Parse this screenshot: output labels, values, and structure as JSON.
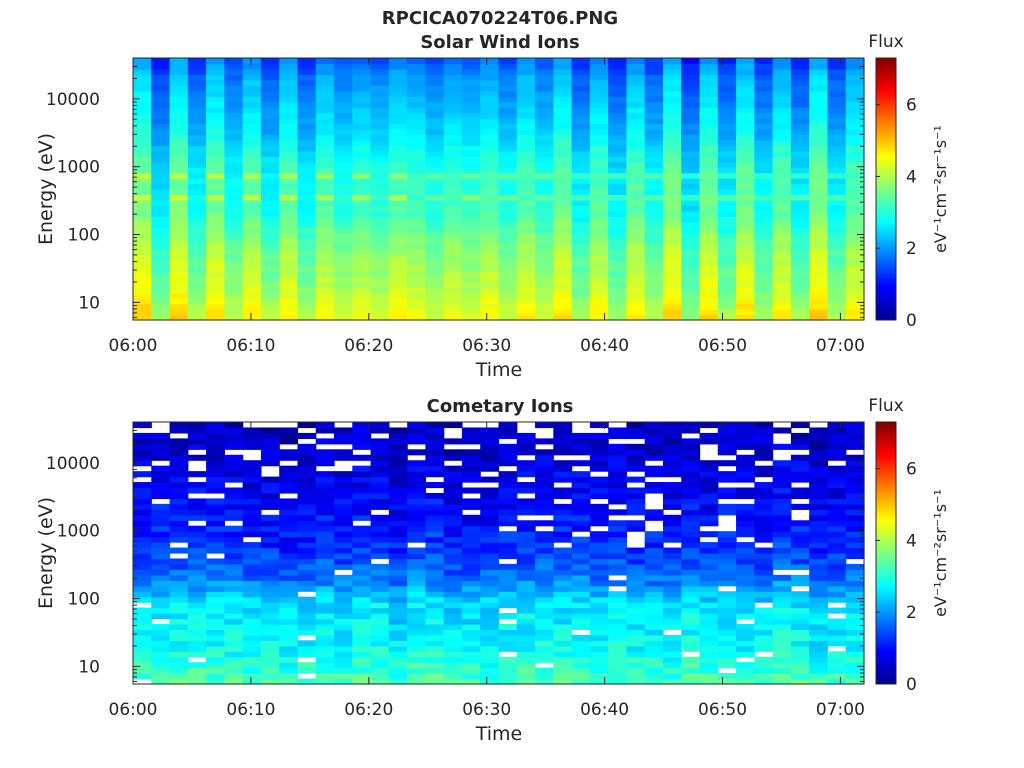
{
  "figure_title": "RPCICA070224T06.PNG",
  "colorbar": {
    "title": "Flux",
    "label": "eV⁻¹cm⁻²sr⁻¹s⁻¹",
    "ticks": [
      "0",
      "2",
      "4",
      "6"
    ],
    "range": [
      0,
      7.3
    ],
    "colormap": "jet"
  },
  "chart_data": [
    {
      "type": "heatmap",
      "title": "Solar Wind Ions",
      "xlabel": "Time",
      "ylabel": "Energy (eV)",
      "x_tick_labels": [
        "06:00",
        "06:10",
        "06:20",
        "06:30",
        "06:40",
        "06:50",
        "07:00"
      ],
      "y_tick_labels": [
        "10",
        "100",
        "1000",
        "10000"
      ],
      "x_range_minutes": [
        0,
        62
      ],
      "y_range_eV": [
        5.5,
        40000
      ],
      "y_scale": "log",
      "n_time_bins": 40,
      "n_energy_bins": 48,
      "energy_flux_profile": {
        "log10_energy_eV": [
          0.8,
          1.2,
          1.6,
          1.95,
          2.3,
          2.55,
          2.85,
          3.15,
          3.5,
          3.9,
          4.3,
          4.6
        ],
        "log10_flux": [
          4.4,
          4.0,
          3.8,
          3.55,
          3.15,
          3.1,
          3.0,
          2.85,
          2.5,
          2.25,
          2.0,
          1.55
        ]
      },
      "time_modulation_period_min": 3.2,
      "time_modulation_amplitude": 0.45,
      "enhanced_energy_lines_eV": [
        360,
        790
      ]
    },
    {
      "type": "heatmap",
      "title": "Cometary Ions",
      "xlabel": "Time",
      "ylabel": "Energy (eV)",
      "x_tick_labels": [
        "06:00",
        "06:10",
        "06:20",
        "06:30",
        "06:40",
        "06:50",
        "07:00"
      ],
      "y_tick_labels": [
        "10",
        "100",
        "1000",
        "10000"
      ],
      "x_range_minutes": [
        0,
        62
      ],
      "y_range_eV": [
        5.5,
        40000
      ],
      "y_scale": "log",
      "n_time_bins": 40,
      "n_energy_bins": 48,
      "energy_flux_profile": {
        "log10_energy_eV": [
          0.8,
          1.2,
          1.6,
          1.95,
          2.2,
          2.45,
          2.8,
          3.2,
          3.6,
          4.0,
          4.4,
          4.6
        ],
        "log10_flux": [
          3.2,
          2.8,
          2.6,
          2.5,
          1.9,
          1.5,
          1.2,
          0.95,
          0.8,
          0.65,
          0.5,
          0.4
        ]
      },
      "empty_bin_fraction_high_energy": 0.22,
      "empty_bin_fraction_low_energy": 0.03
    }
  ]
}
